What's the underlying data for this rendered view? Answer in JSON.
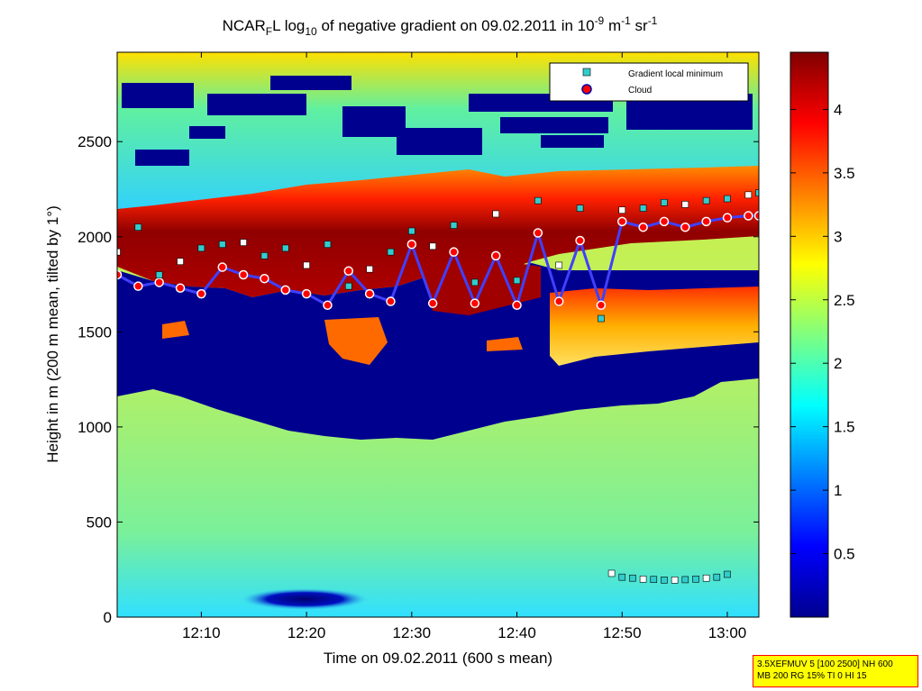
{
  "chart_data": {
    "type": "heatmap",
    "title": {
      "prefix": "NCAR",
      "prefix_sub": "F",
      "mid": "L log",
      "log_sub": "10",
      "main": " of negative gradient on 09.02.2011 in 10",
      "exp1": "-9",
      "unit1": " m",
      "exp2": "-1",
      "unit2": " sr",
      "exp3": "-1"
    },
    "xlabel": "Time on 09.02.2011 (600 s mean)",
    "ylabel": "Height in m (200 m mean, tilted by 1°)",
    "x_range": [
      "12:02",
      "13:03"
    ],
    "xticks": [
      "12:10",
      "12:20",
      "12:30",
      "12:40",
      "12:50",
      "13:00"
    ],
    "ylim": [
      0,
      2970
    ],
    "yticks": [
      0,
      500,
      1000,
      1500,
      2000,
      2500
    ],
    "colorbar": {
      "range": [
        0,
        4.45
      ],
      "ticks": [
        "0.5",
        "1",
        "1.5",
        "2",
        "2.5",
        "3",
        "3.5",
        "4"
      ],
      "colormap": "jet"
    },
    "legend": {
      "placement": "top-right",
      "entries": [
        {
          "name": "Gradient local minimum",
          "marker": "square",
          "color": "#33cccc"
        },
        {
          "name": "Cloud",
          "marker": "circle",
          "color": "#ff0000"
        }
      ]
    },
    "series": [
      {
        "name": "Cloud",
        "time_min": [
          0,
          2,
          4,
          6,
          8,
          10,
          12,
          14,
          16,
          18,
          20,
          22,
          24,
          26,
          28,
          30,
          32,
          34,
          36,
          38,
          40,
          42,
          44,
          46,
          48,
          50,
          52,
          54,
          56,
          58,
          60,
          61
        ],
        "height_m": [
          1800,
          1740,
          1760,
          1730,
          1700,
          1840,
          1800,
          1780,
          1720,
          1700,
          1640,
          1820,
          1700,
          1660,
          1960,
          1650,
          1920,
          1650,
          1900,
          1640,
          2020,
          1660,
          1980,
          1640,
          2080,
          2050,
          2080,
          2050,
          2080,
          2100,
          2110,
          2110
        ]
      },
      {
        "name": "Gradient local minimum",
        "time_min": [
          0,
          2,
          4,
          6,
          8,
          10,
          12,
          14,
          16,
          18,
          20,
          22,
          24,
          26,
          28,
          30,
          32,
          34,
          36,
          38,
          40,
          42,
          44,
          46,
          48,
          50,
          52,
          54,
          56,
          58,
          60,
          61
        ],
        "height_m": [
          1920,
          2050,
          1800,
          1870,
          1940,
          1960,
          1970,
          1900,
          1940,
          1850,
          1960,
          1740,
          1830,
          1920,
          2030,
          1950,
          2060,
          1760,
          2120,
          1770,
          2190,
          1850,
          2150,
          1570,
          2140,
          2150,
          2180,
          2170,
          2190,
          2200,
          2220,
          2230
        ]
      },
      {
        "name": "Gradient local minimum (low band)",
        "time_min": [
          47,
          48,
          49,
          50,
          51,
          52,
          53,
          54,
          55,
          56,
          57,
          58
        ],
        "height_m": [
          230,
          210,
          205,
          200,
          198,
          195,
          195,
          197,
          200,
          205,
          210,
          225
        ]
      }
    ]
  },
  "info_box": {
    "line1": "3.5XEFMUV 5 [100 2500] NH 600",
    "line2": "MB 200 RG 15% TI 0 HI 15"
  }
}
